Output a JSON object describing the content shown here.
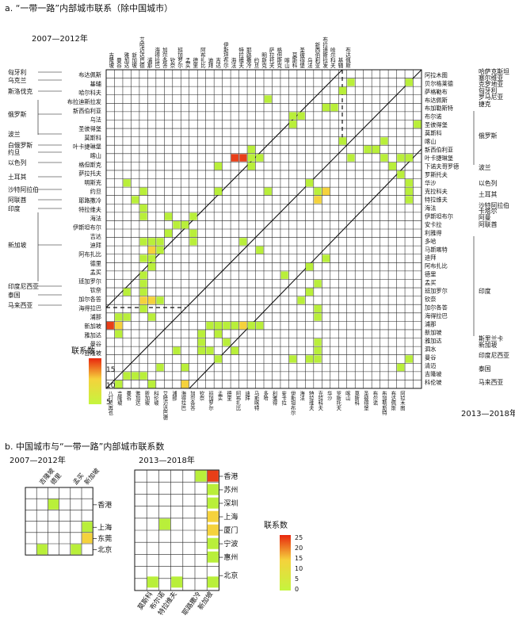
{
  "panel_a": {
    "title": "a. “一带一路”内部城市联系（除中国城市）",
    "period_left": "2007—2012年",
    "period_right": "2013—2018年",
    "legend_title": "联系数",
    "legend_ticks": [
      "15",
      "10",
      "5"
    ],
    "colors": {
      "low": "#b9ef3a",
      "mid": "#f5d23c",
      "high": "#e83e18"
    },
    "left_countries": [
      "匈牙利",
      "乌克兰",
      "斯洛伐克",
      "俄罗斯",
      "波兰",
      "白俄罗斯",
      "约旦",
      "以色列",
      "土耳其",
      "沙特阿拉伯",
      "阿联酋",
      "印度",
      "新加坡",
      "印度尼西亚",
      "泰国",
      "马来西亚"
    ],
    "right_countries": [
      "哈萨克斯坦",
      "塞尔维亚",
      "克罗地亚",
      "匈牙利",
      "罗马尼亚",
      "捷克",
      "俄罗斯",
      "波兰",
      "以色列",
      "土耳其",
      "沙特阿拉伯",
      "卡塔尔",
      "阿曼",
      "阿联酋",
      "印度",
      "斯里兰卡",
      "新加坡",
      "印度尼西亚",
      "泰国",
      "马来西亚"
    ],
    "left_city_labels": [
      "布达佩斯",
      "基辅",
      "哈尔科夫",
      "布拉迪斯拉发",
      "新西伯利亚",
      "乌法",
      "圣彼得堡",
      "莫斯科",
      "叶卡捷琳堡",
      "喀山",
      "格但斯克",
      "萨拉托夫",
      "明斯克",
      "约旦",
      "耶路撒冷",
      "特拉维夫",
      "海法",
      "伊斯坦布尔",
      "吉达",
      "迪拜",
      "阿布扎比",
      "德里",
      "孟买",
      "班加罗尔",
      "钦奈",
      "加尔各答",
      "海得拉巴",
      "浦那",
      "新加坡",
      "雅加达",
      "曼谷",
      "吉隆坡"
    ],
    "top_city_labels": [
      "吉隆坡",
      "曼谷",
      "雅加达",
      "新加坡",
      "艾哈迈达巴德",
      "浦那",
      "海得拉巴",
      "加尔各答",
      "钦奈",
      "班加罗尔",
      "孟买",
      "德里",
      "阿布扎比",
      "迪拜",
      "吉达",
      "伊斯坦布尔",
      "海法",
      "特拉维夫",
      "耶路撒冷",
      "约旦",
      "明斯克",
      "萨拉托夫",
      "格但斯克",
      "喀山",
      "莫斯科",
      "圣彼得堡",
      "乌法",
      "新西伯利亚",
      "布拉迪斯拉发",
      "哈尔科夫",
      "基辅",
      "布达佩斯"
    ],
    "right_city_labels": [
      "阿拉木图",
      "贝尔格莱德",
      "萨格勒布",
      "布达佩斯",
      "布加勒斯特",
      "布尔诺",
      "圣彼得堡",
      "莫斯科",
      "喀山",
      "新西伯利亚",
      "叶卡捷琳堡",
      "下诺夫哥罗德",
      "罗斯托夫",
      "华沙",
      "克拉科夫",
      "特拉维夫",
      "海法",
      "伊斯坦布尔",
      "安卡拉",
      "利雅得",
      "多哈",
      "马斯喀特",
      "迪拜",
      "阿布扎比",
      "德里",
      "孟买",
      "班加罗尔",
      "钦奈",
      "加尔各答",
      "海得拉巴",
      "浦那",
      "新加坡",
      "雅加达",
      "泗水",
      "曼谷",
      "清迈",
      "吉隆坡",
      "科伦坡"
    ],
    "bottom_city_labels": [
      "八打灵再也",
      "吉隆坡",
      "曼谷",
      "雅加达",
      "新加坡",
      "科伦坡",
      "艾哈迈达巴德",
      "浦那",
      "海得拉巴",
      "加尔各答",
      "钦奈",
      "班加罗尔",
      "孟买",
      "德里",
      "阿布扎比",
      "迪拜",
      "马斯喀特",
      "多哈",
      "利雅得",
      "安卡拉",
      "伊斯坦布尔",
      "海法",
      "特拉维夫",
      "克拉科夫",
      "华沙",
      "罗斯托夫",
      "喀山",
      "莫斯科",
      "圣彼得堡",
      "布尔诺",
      "布加勒斯特",
      "布达佩斯",
      "阿拉木图"
    ]
  },
  "panel_b": {
    "title": "b. 中国城市与“一带一路”内部城市联系数",
    "left": {
      "period": "2007—2012年",
      "columns": [
        "吉隆坡",
        "德里",
        "孟买",
        "新加坡"
      ],
      "rows": [
        "香港",
        "上海",
        "东莞",
        "北京"
      ]
    },
    "right": {
      "period": "2013—2018年",
      "columns": [
        "莫斯科",
        "布尔诺",
        "特拉维夫",
        "耶路撒冷",
        "新加坡"
      ],
      "rows": [
        "香港",
        "苏州",
        "深圳",
        "上海",
        "厦门",
        "宁波",
        "惠州",
        "北京"
      ]
    },
    "legend_title": "联系数",
    "legend_ticks": [
      "25",
      "20",
      "15",
      "10",
      "5",
      "0"
    ]
  },
  "chart_data": {
    "type": "heatmap",
    "panel_a_cells_lower": [
      [
        1,
        4,
        "low"
      ],
      [
        13,
        2,
        "low"
      ],
      [
        13,
        11,
        "high"
      ],
      [
        13,
        12,
        "high"
      ],
      [
        18,
        17,
        "low"
      ],
      [
        14,
        17,
        "low"
      ],
      [
        13,
        5,
        "low"
      ],
      [
        19,
        8,
        "low"
      ],
      [
        24,
        15,
        "low"
      ],
      [
        25,
        7,
        "mid"
      ],
      [
        28,
        6,
        "low"
      ],
      [
        24,
        19,
        "low"
      ],
      [
        24,
        20,
        "mid"
      ],
      [
        34,
        4,
        "mid"
      ],
      [
        34,
        11,
        "low"
      ],
      [
        35,
        3,
        "low"
      ],
      [
        35,
        8,
        "low"
      ],
      [
        19,
        10,
        "low"
      ],
      [
        20,
        22,
        "low"
      ]
    ],
    "panel_b_left_cells": [
      [
        0,
        1,
        "low"
      ],
      [
        1,
        3,
        "low"
      ],
      [
        2,
        3,
        "mid"
      ],
      [
        3,
        0,
        "low"
      ],
      [
        3,
        2,
        "low"
      ]
    ],
    "panel_b_right_cells": [
      [
        0,
        3,
        "low"
      ],
      [
        0,
        4,
        "high"
      ],
      [
        1,
        4,
        "low"
      ],
      [
        2,
        4,
        "low"
      ],
      [
        3,
        4,
        "mid"
      ],
      [
        4,
        4,
        "mid"
      ],
      [
        5,
        4,
        "low"
      ],
      [
        6,
        4,
        "low"
      ],
      [
        7,
        4,
        "low"
      ],
      [
        3,
        1,
        "low"
      ],
      [
        7,
        0,
        "low"
      ],
      [
        7,
        2,
        "low"
      ]
    ]
  }
}
